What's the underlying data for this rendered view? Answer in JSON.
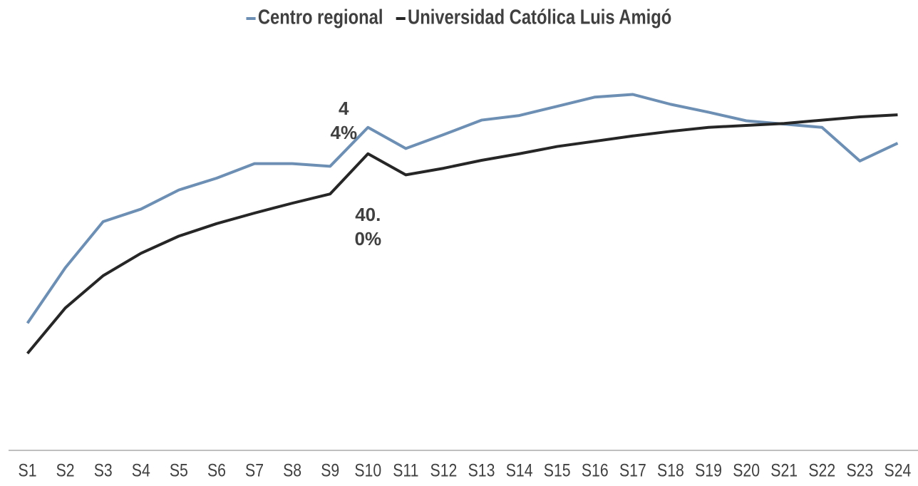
{
  "chart_data": {
    "type": "line",
    "categories": [
      "S1",
      "S2",
      "S3",
      "S4",
      "S5",
      "S6",
      "S7",
      "S8",
      "S9",
      "S10",
      "S11",
      "S12",
      "S13",
      "S14",
      "S15",
      "S16",
      "S17",
      "S18",
      "S19",
      "S20",
      "S21",
      "S22",
      "S23",
      "S24"
    ],
    "series": [
      {
        "name": "Centro regional",
        "color": "#6d8fb3",
        "values": [
          14.3,
          22.7,
          29.7,
          31.6,
          34.5,
          36.3,
          38.5,
          38.5,
          38.1,
          44,
          40.8,
          42.9,
          45.1,
          45.8,
          47.2,
          48.6,
          49.0,
          47.5,
          46.3,
          45.0,
          44.5,
          44.0,
          38.9,
          41.6
        ],
        "value_labels": [
          null,
          null,
          null,
          null,
          null,
          null,
          null,
          null,
          null,
          "44%",
          null,
          null,
          null,
          null,
          null,
          null,
          null,
          null,
          null,
          null,
          null,
          null,
          null,
          null
        ]
      },
      {
        "name": "Universidad Católica Luis Amigó",
        "color": "#262626",
        "values": [
          9.7,
          16.6,
          21.5,
          24.9,
          27.5,
          29.4,
          31.0,
          32.5,
          33.9,
          40.0,
          36.8,
          37.8,
          39.0,
          40.0,
          41.1,
          41.9,
          42.7,
          43.4,
          44.0,
          44.3,
          44.6,
          45.1,
          45.6,
          45.9
        ],
        "value_labels": [
          null,
          null,
          null,
          null,
          null,
          null,
          null,
          null,
          null,
          "40.0%",
          null,
          null,
          null,
          null,
          null,
          null,
          null,
          null,
          null,
          null,
          null,
          null,
          null,
          null
        ]
      }
    ],
    "ylim": [
      -5,
      55
    ],
    "legend": "top"
  }
}
